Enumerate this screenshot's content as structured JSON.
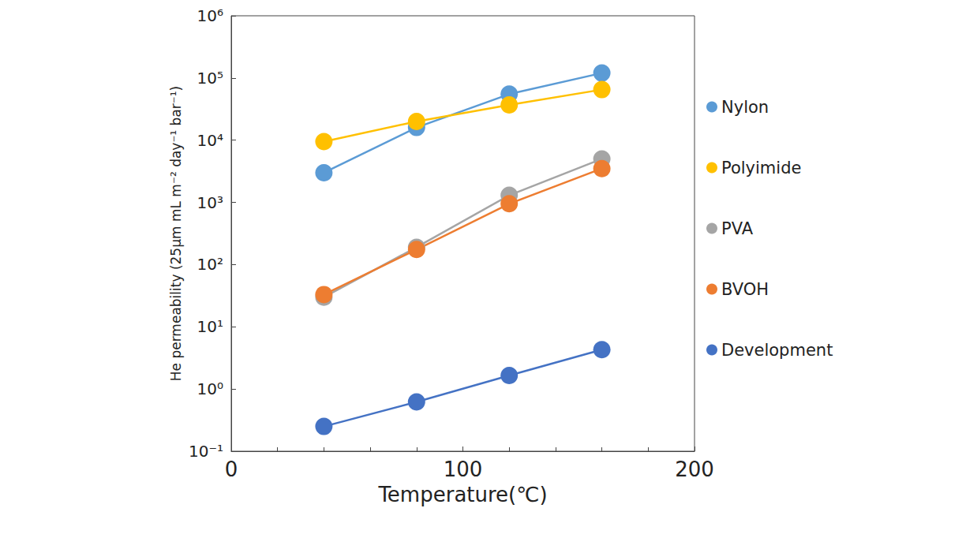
{
  "chart_data": {
    "type": "scatter",
    "x_label": "Temperature(℃)",
    "y_label": "He permeability (25μm mL m⁻² day⁻¹ bar⁻¹)",
    "x": [
      40,
      80,
      120,
      160
    ],
    "series": [
      {
        "name": "Nylon",
        "color": "#5b9bd5",
        "values": [
          3000,
          16000,
          55000,
          120000
        ]
      },
      {
        "name": "Polyimide",
        "color": "#ffc000",
        "values": [
          9500,
          20000,
          37000,
          65000
        ]
      },
      {
        "name": "PVA",
        "color": "#a5a5a5",
        "values": [
          30,
          190,
          1300,
          5000
        ]
      },
      {
        "name": "BVOH",
        "color": "#ed7d31",
        "values": [
          33,
          175,
          950,
          3500
        ]
      },
      {
        "name": "Development",
        "color": "#4472c4",
        "values": [
          0.25,
          0.62,
          1.65,
          4.3
        ]
      }
    ],
    "xlim": [
      0,
      200
    ],
    "xticks": [
      0,
      100,
      200
    ],
    "ylim": [
      0.1,
      1000000
    ],
    "yticks": [
      {
        "value": 0.1,
        "label": "10⁻¹"
      },
      {
        "value": 1,
        "label": "10⁰"
      },
      {
        "value": 10,
        "label": "10¹"
      },
      {
        "value": 100,
        "label": "10²"
      },
      {
        "value": 1000,
        "label": "10³"
      },
      {
        "value": 10000,
        "label": "10⁴"
      },
      {
        "value": 100000,
        "label": "10⁵"
      },
      {
        "value": 1000000,
        "label": "10⁶"
      }
    ],
    "log": "y",
    "grid": false,
    "legend": "right",
    "marker": "circle",
    "line_style": "solid"
  }
}
